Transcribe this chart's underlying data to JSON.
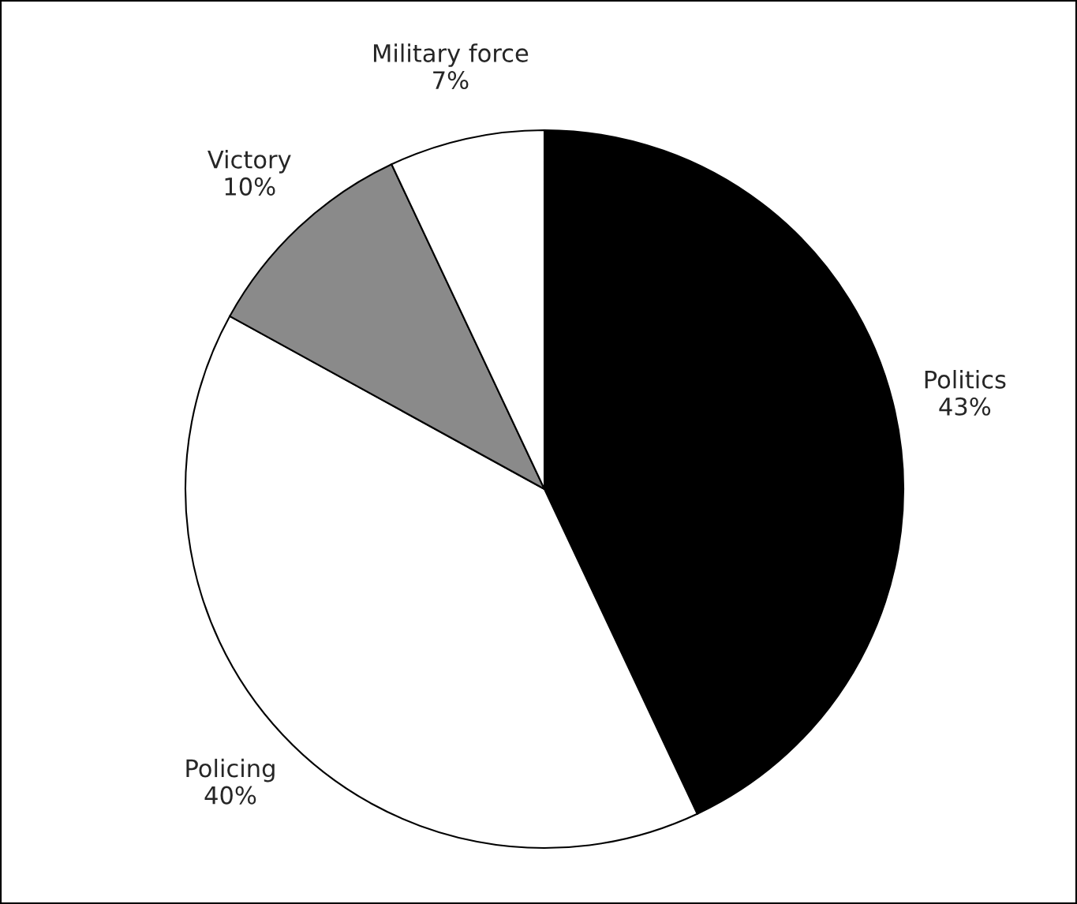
{
  "chart_data": {
    "type": "pie",
    "categories": [
      "Politics",
      "Policing",
      "Victory",
      "Military force"
    ],
    "values": [
      43,
      40,
      10,
      7
    ],
    "value_labels": [
      "43%",
      "40%",
      "10%",
      "7%"
    ],
    "colors": [
      "#000000",
      "#ffffff",
      "#8a8a8a",
      "#ffffff"
    ]
  }
}
